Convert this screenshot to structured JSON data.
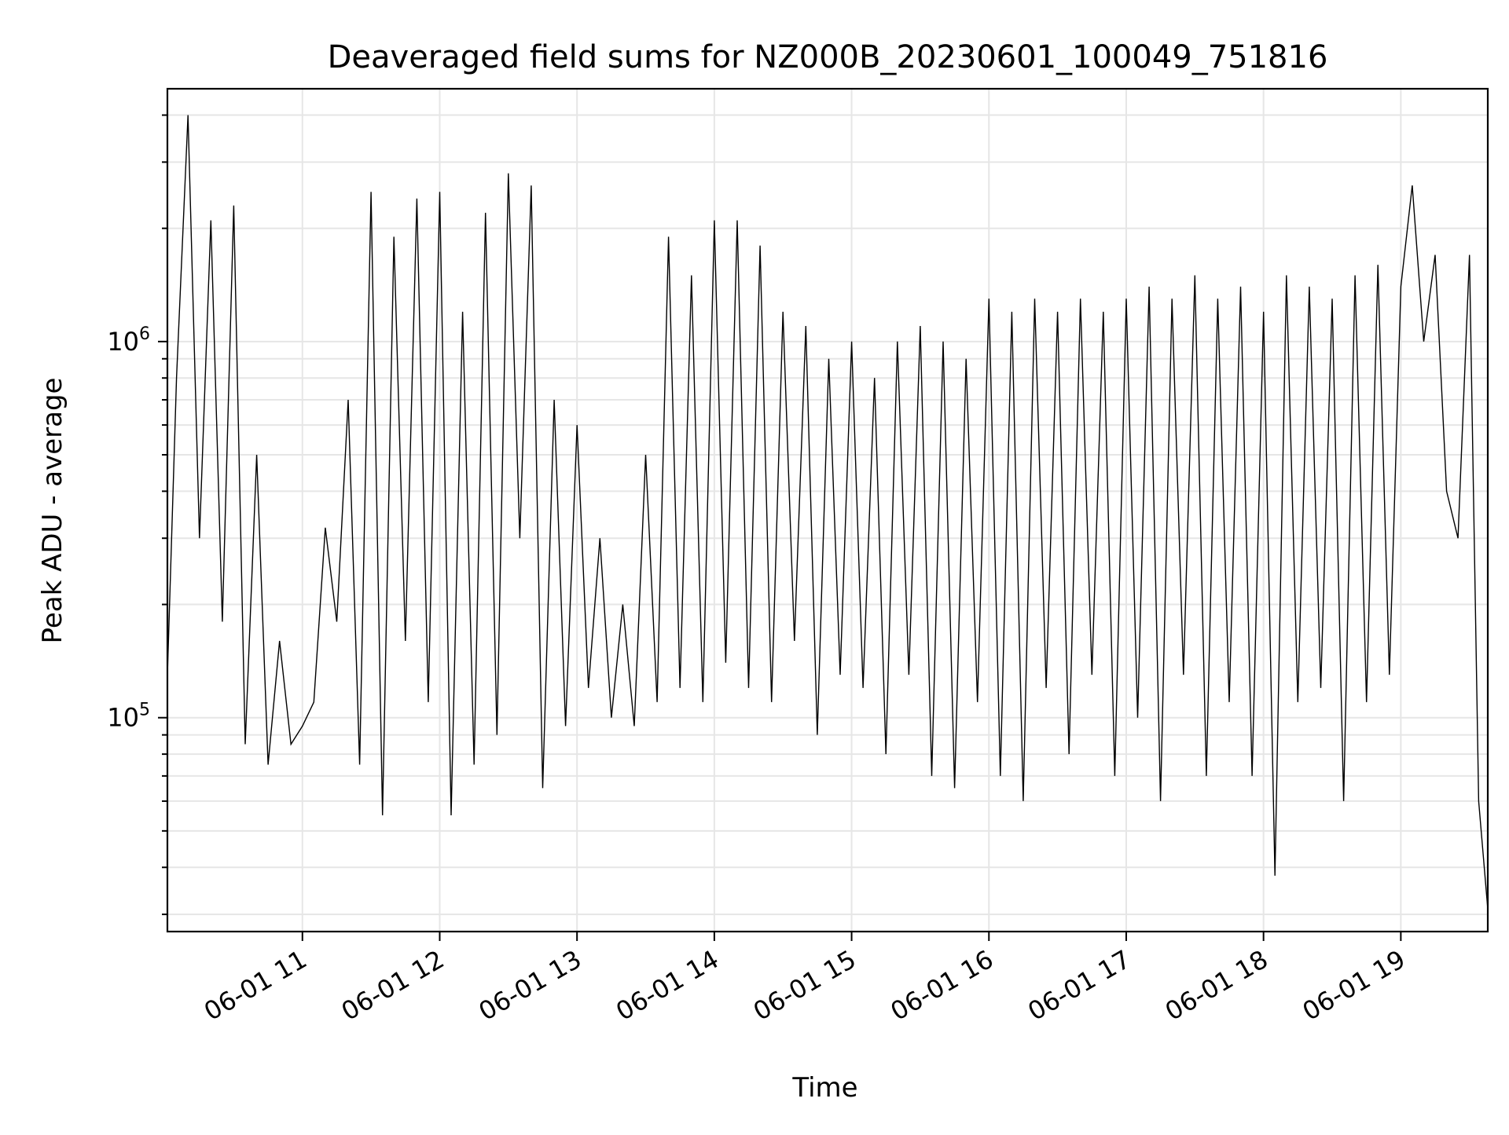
{
  "chart_data": {
    "type": "line",
    "title": "Deaveraged field sums for NZ000B_20230601_100049_751816",
    "xlabel": "Time",
    "ylabel": "Peak ADU - average",
    "yscale": "log",
    "ylim": [
      27000,
      4700000
    ],
    "xlim": [
      "2023-06-01 10:01",
      "2023-06-01 19:38"
    ],
    "grid": true,
    "line_color": "#000000",
    "x_ticks": [
      {
        "value": "2023-06-01 11:00",
        "label": "06-01 11"
      },
      {
        "value": "2023-06-01 12:00",
        "label": "06-01 12"
      },
      {
        "value": "2023-06-01 13:00",
        "label": "06-01 13"
      },
      {
        "value": "2023-06-01 14:00",
        "label": "06-01 14"
      },
      {
        "value": "2023-06-01 15:00",
        "label": "06-01 15"
      },
      {
        "value": "2023-06-01 16:00",
        "label": "06-01 16"
      },
      {
        "value": "2023-06-01 17:00",
        "label": "06-01 17"
      },
      {
        "value": "2023-06-01 18:00",
        "label": "06-01 18"
      },
      {
        "value": "2023-06-01 19:00",
        "label": "06-01 19"
      }
    ],
    "y_major_ticks": [
      {
        "value": 100000,
        "base": "10",
        "exp": "5"
      },
      {
        "value": 1000000,
        "base": "10",
        "exp": "6"
      }
    ],
    "series": [
      {
        "x": [
          "2023-06-01 10:01",
          "2023-06-01 10:05",
          "2023-06-01 10:10",
          "2023-06-01 10:15",
          "2023-06-01 10:20",
          "2023-06-01 10:25",
          "2023-06-01 10:30",
          "2023-06-01 10:35",
          "2023-06-01 10:40",
          "2023-06-01 10:45",
          "2023-06-01 10:50",
          "2023-06-01 10:55",
          "2023-06-01 11:00",
          "2023-06-01 11:05",
          "2023-06-01 11:10",
          "2023-06-01 11:15",
          "2023-06-01 11:20",
          "2023-06-01 11:25",
          "2023-06-01 11:30",
          "2023-06-01 11:35",
          "2023-06-01 11:40",
          "2023-06-01 11:45",
          "2023-06-01 11:50",
          "2023-06-01 11:55",
          "2023-06-01 12:00",
          "2023-06-01 12:05",
          "2023-06-01 12:10",
          "2023-06-01 12:15",
          "2023-06-01 12:20",
          "2023-06-01 12:25",
          "2023-06-01 12:30",
          "2023-06-01 12:35",
          "2023-06-01 12:40",
          "2023-06-01 12:45",
          "2023-06-01 12:50",
          "2023-06-01 12:55",
          "2023-06-01 13:00",
          "2023-06-01 13:05",
          "2023-06-01 13:10",
          "2023-06-01 13:15",
          "2023-06-01 13:20",
          "2023-06-01 13:25",
          "2023-06-01 13:30",
          "2023-06-01 13:35",
          "2023-06-01 13:40",
          "2023-06-01 13:45",
          "2023-06-01 13:50",
          "2023-06-01 13:55",
          "2023-06-01 14:00",
          "2023-06-01 14:05",
          "2023-06-01 14:10",
          "2023-06-01 14:15",
          "2023-06-01 14:20",
          "2023-06-01 14:25",
          "2023-06-01 14:30",
          "2023-06-01 14:35",
          "2023-06-01 14:40",
          "2023-06-01 14:45",
          "2023-06-01 14:50",
          "2023-06-01 14:55",
          "2023-06-01 15:00",
          "2023-06-01 15:05",
          "2023-06-01 15:10",
          "2023-06-01 15:15",
          "2023-06-01 15:20",
          "2023-06-01 15:25",
          "2023-06-01 15:30",
          "2023-06-01 15:35",
          "2023-06-01 15:40",
          "2023-06-01 15:45",
          "2023-06-01 15:50",
          "2023-06-01 15:55",
          "2023-06-01 16:00",
          "2023-06-01 16:05",
          "2023-06-01 16:10",
          "2023-06-01 16:15",
          "2023-06-01 16:20",
          "2023-06-01 16:25",
          "2023-06-01 16:30",
          "2023-06-01 16:35",
          "2023-06-01 16:40",
          "2023-06-01 16:45",
          "2023-06-01 16:50",
          "2023-06-01 16:55",
          "2023-06-01 17:00",
          "2023-06-01 17:05",
          "2023-06-01 17:10",
          "2023-06-01 17:15",
          "2023-06-01 17:20",
          "2023-06-01 17:25",
          "2023-06-01 17:30",
          "2023-06-01 17:35",
          "2023-06-01 17:40",
          "2023-06-01 17:45",
          "2023-06-01 17:50",
          "2023-06-01 17:55",
          "2023-06-01 18:00",
          "2023-06-01 18:05",
          "2023-06-01 18:10",
          "2023-06-01 18:15",
          "2023-06-01 18:20",
          "2023-06-01 18:25",
          "2023-06-01 18:30",
          "2023-06-01 18:35",
          "2023-06-01 18:40",
          "2023-06-01 18:45",
          "2023-06-01 18:50",
          "2023-06-01 18:55",
          "2023-06-01 19:00",
          "2023-06-01 19:05",
          "2023-06-01 19:10",
          "2023-06-01 19:15",
          "2023-06-01 19:20",
          "2023-06-01 19:25",
          "2023-06-01 19:30",
          "2023-06-01 19:34",
          "2023-06-01 19:38"
        ],
        "y": [
          130000,
          800000,
          4000000,
          300000,
          2100000,
          180000,
          2300000,
          85000,
          500000,
          75000,
          160000,
          85000,
          95000,
          110000,
          320000,
          180000,
          700000,
          75000,
          2500000,
          55000,
          1900000,
          160000,
          2400000,
          110000,
          2500000,
          55000,
          1200000,
          75000,
          2200000,
          90000,
          2800000,
          300000,
          2600000,
          65000,
          700000,
          95000,
          600000,
          120000,
          300000,
          100000,
          200000,
          95000,
          500000,
          110000,
          1900000,
          120000,
          1500000,
          110000,
          2100000,
          140000,
          2100000,
          120000,
          1800000,
          110000,
          1200000,
          160000,
          1100000,
          90000,
          900000,
          130000,
          1000000,
          120000,
          800000,
          80000,
          1000000,
          130000,
          1100000,
          70000,
          1000000,
          65000,
          900000,
          110000,
          1300000,
          70000,
          1200000,
          60000,
          1300000,
          120000,
          1200000,
          80000,
          1300000,
          130000,
          1200000,
          70000,
          1300000,
          100000,
          1400000,
          60000,
          1300000,
          130000,
          1500000,
          70000,
          1300000,
          110000,
          1400000,
          70000,
          1200000,
          38000,
          1500000,
          110000,
          1400000,
          120000,
          1300000,
          60000,
          1500000,
          110000,
          1600000,
          130000,
          1400000,
          2600000,
          1000000,
          1700000,
          400000,
          300000,
          1700000,
          60000,
          31000
        ]
      }
    ]
  }
}
